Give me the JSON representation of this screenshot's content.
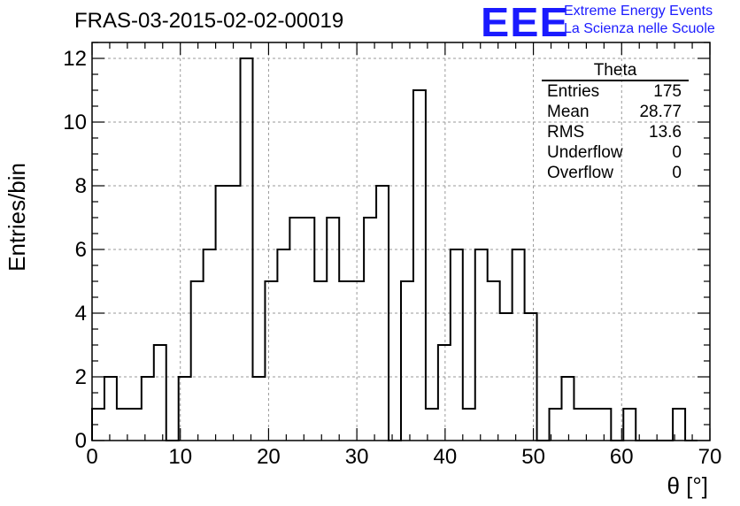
{
  "header": {
    "run_title": "FRAS-03-2015-02-02-00019"
  },
  "logo": {
    "mark": "EEE",
    "line1": "Extreme Energy Events",
    "line2": "La Scienza nelle Scuole"
  },
  "stats_box": {
    "title": "Theta",
    "rows": [
      {
        "label": "Entries",
        "value": "175"
      },
      {
        "label": "Mean",
        "value": "28.77"
      },
      {
        "label": "RMS",
        "value": "13.6"
      },
      {
        "label": "Underflow",
        "value": "0"
      },
      {
        "label": "Overflow",
        "value": "0"
      }
    ]
  },
  "colors": {
    "line": "#000000",
    "grid": "#9a9a9a",
    "logo": "#1a1aff"
  },
  "chart_data": {
    "type": "bar",
    "style": "step-histogram",
    "title": "FRAS-03-2015-02-02-00019",
    "xlabel": "θ [°]",
    "ylabel": "Entries/bin",
    "xlim": [
      0,
      70
    ],
    "ylim": [
      0,
      12.5
    ],
    "grid": true,
    "bin_width": 1.4,
    "bin_start": 0,
    "values": [
      1,
      2,
      1,
      1,
      2,
      3,
      0,
      2,
      5,
      6,
      8,
      8,
      12,
      2,
      5,
      6,
      7,
      7,
      5,
      7,
      5,
      5,
      7,
      8,
      0,
      5,
      11,
      1,
      3,
      6,
      1,
      6,
      5,
      4,
      6,
      4,
      0,
      1,
      2,
      1,
      1,
      1,
      0,
      1,
      0,
      0,
      0,
      1,
      0
    ],
    "xticks": [
      "0",
      "10",
      "20",
      "30",
      "40",
      "50",
      "60",
      "70"
    ],
    "yticks": [
      "0",
      "2",
      "4",
      "6",
      "8",
      "10",
      "12"
    ]
  }
}
